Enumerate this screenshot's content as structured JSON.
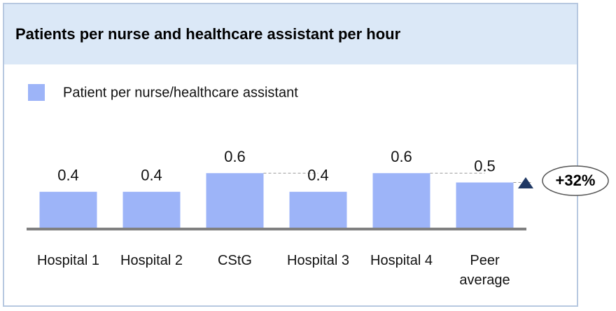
{
  "chart_data": {
    "type": "bar",
    "title": "Patients per nurse and healthcare assistant per hour",
    "series": [
      {
        "name": "Patient per nurse/healthcare assistant",
        "color": "#9db4f8",
        "values": [
          0.4,
          0.4,
          0.6,
          0.4,
          0.6,
          0.5
        ]
      }
    ],
    "categories": [
      "Hospital 1",
      "Hospital 2",
      "CStG",
      "Hospital 3",
      "Hospital 4",
      "Peer average"
    ],
    "annotation": "+32%"
  }
}
